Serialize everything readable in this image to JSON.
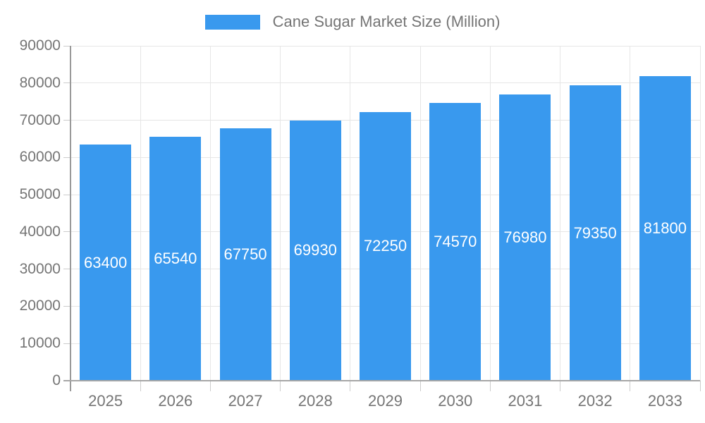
{
  "chart_data": {
    "type": "bar",
    "title": "Cane Sugar Market Size (Million)",
    "categories": [
      "2025",
      "2026",
      "2027",
      "2028",
      "2029",
      "2030",
      "2031",
      "2032",
      "2033"
    ],
    "values": [
      63400,
      65540,
      67750,
      69930,
      72250,
      74570,
      76980,
      79350,
      81800
    ],
    "series_name": "Cane Sugar Market Size (Million)",
    "xlabel": "",
    "ylabel": "",
    "ylim": [
      0,
      90000
    ],
    "yticks": [
      0,
      10000,
      20000,
      30000,
      40000,
      50000,
      60000,
      70000,
      80000,
      90000
    ],
    "grid": true,
    "legend_position": "top-center",
    "value_label_position": "inside-center"
  },
  "colors": {
    "bar": "#3999ee",
    "value_label": "#ffffff",
    "text": "#757575",
    "gridline": "#e6e6e6",
    "y_axis": "#999999",
    "x_axis": "#a6a6a6",
    "tick": "#cccccc",
    "background": "#ffffff"
  }
}
